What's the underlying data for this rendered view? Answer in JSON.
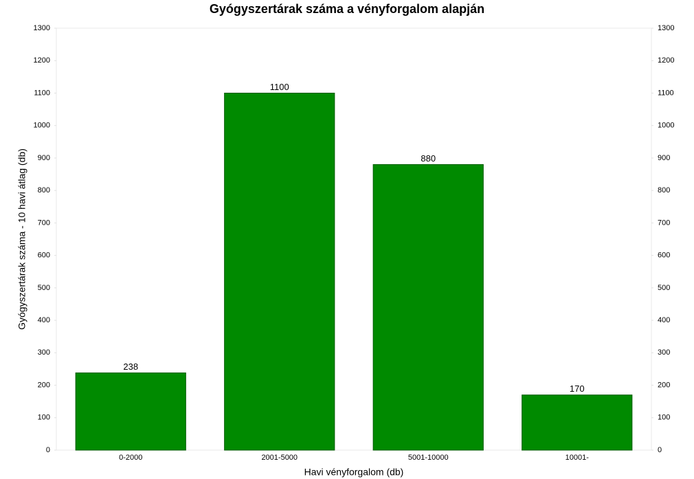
{
  "chart_data": {
    "type": "bar",
    "title": "Gyógyszertárak száma a vényforgalom alapján",
    "x_label": "Havi vényforgalom (db)",
    "y_label": "Gyógyszertárak száma - 10 havi átlag (db)",
    "categories": [
      "0-2000",
      "2001-5000",
      "5001-10000",
      "10001-"
    ],
    "values": [
      238,
      1100,
      880,
      170
    ],
    "color": "#008a00",
    "ylim": [
      0,
      1300
    ],
    "yticks": [
      0,
      100,
      200,
      300,
      400,
      500,
      600,
      700,
      800,
      900,
      1000,
      1100,
      1200,
      1300
    ],
    "y2lim": [
      0,
      1300
    ],
    "y2ticks": [
      0,
      100,
      200,
      300,
      400,
      500,
      600,
      700,
      800,
      900,
      1000,
      1100,
      1200,
      1300
    ],
    "grid": false
  }
}
